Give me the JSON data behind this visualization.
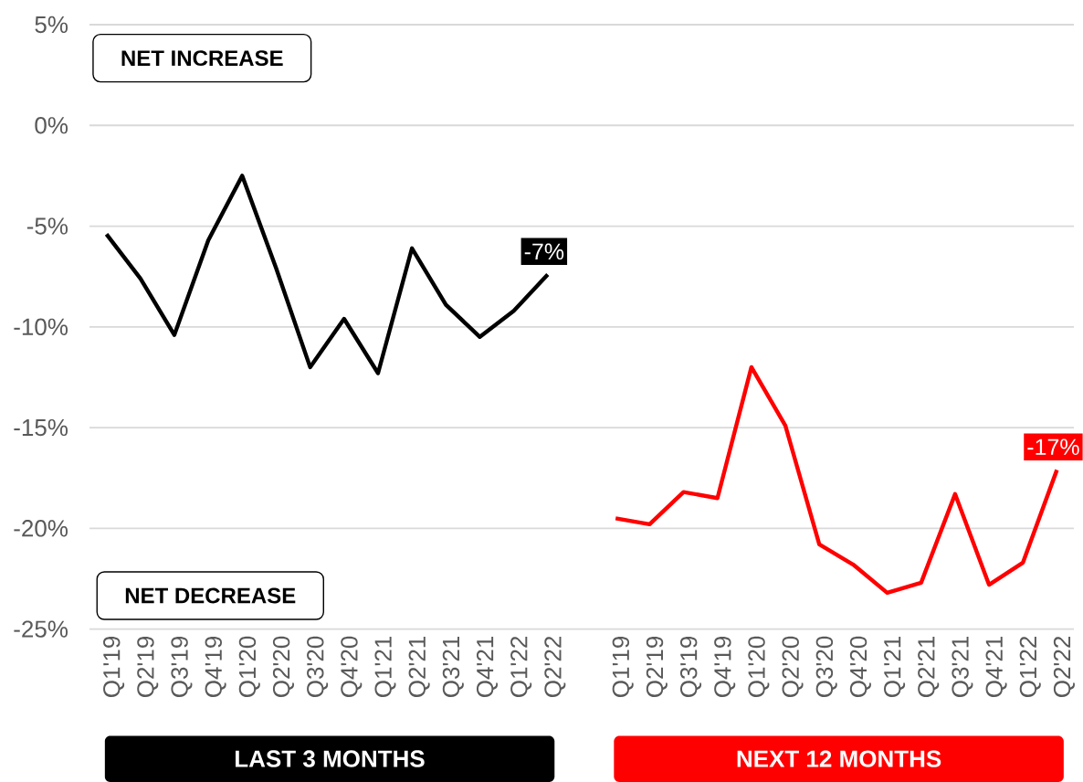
{
  "chart_data": {
    "type": "line",
    "categories": [
      "Q1'19",
      "Q2'19",
      "Q3'19",
      "Q4'19",
      "Q1'20",
      "Q2'20",
      "Q3'20",
      "Q4'20",
      "Q1'21",
      "Q2'21",
      "Q3'21",
      "Q4'21",
      "Q1'22",
      "Q2'22",
      null,
      "Q1'19",
      "Q2'19",
      "Q3'19",
      "Q4'19",
      "Q1'20",
      "Q2'20",
      "Q3'20",
      "Q4'20",
      "Q1'21",
      "Q2'21",
      "Q3'21",
      "Q4'21",
      "Q1'22",
      "Q2'22"
    ],
    "series": [
      {
        "name": "LAST 3 MONTHS",
        "color": "#000000",
        "values": [
          -5.4,
          -7.6,
          -10.4,
          -5.7,
          -2.5,
          -7.1,
          -12.0,
          -9.6,
          -12.3,
          -6.1,
          -8.9,
          -10.5,
          -9.2,
          -7.4,
          null,
          null,
          null,
          null,
          null,
          null,
          null,
          null,
          null,
          null,
          null,
          null,
          null,
          null,
          null
        ],
        "value_labels": [
          null,
          null,
          null,
          null,
          null,
          null,
          null,
          null,
          null,
          null,
          null,
          null,
          null,
          "-7%",
          null,
          null,
          null,
          null,
          null,
          null,
          null,
          null,
          null,
          null,
          null,
          null,
          null,
          null,
          null
        ]
      },
      {
        "name": "NEXT 12 MONTHS",
        "color": "#ff0000",
        "values": [
          null,
          null,
          null,
          null,
          null,
          null,
          null,
          null,
          null,
          null,
          null,
          null,
          null,
          null,
          null,
          -19.5,
          -19.8,
          -18.2,
          -18.5,
          -12.0,
          -14.9,
          -20.8,
          -21.8,
          -23.2,
          -22.7,
          -18.3,
          -22.8,
          -21.7,
          -17.1
        ],
        "value_labels": [
          null,
          null,
          null,
          null,
          null,
          null,
          null,
          null,
          null,
          null,
          null,
          null,
          null,
          null,
          null,
          null,
          null,
          null,
          null,
          null,
          null,
          null,
          null,
          null,
          null,
          null,
          null,
          null,
          "-17%"
        ]
      }
    ],
    "ylim": [
      -25,
      5
    ],
    "yticks": [
      {
        "value": 5,
        "label": "5%"
      },
      {
        "value": 0,
        "label": "0%"
      },
      {
        "value": -5,
        "label": "-5%"
      },
      {
        "value": -10,
        "label": "-10%"
      },
      {
        "value": -15,
        "label": "-15%"
      },
      {
        "value": -20,
        "label": "-20%"
      },
      {
        "value": -25,
        "label": "-25%"
      }
    ],
    "grid": "y",
    "annotations": [
      "NET INCREASE",
      "NET DECREASE"
    ]
  }
}
